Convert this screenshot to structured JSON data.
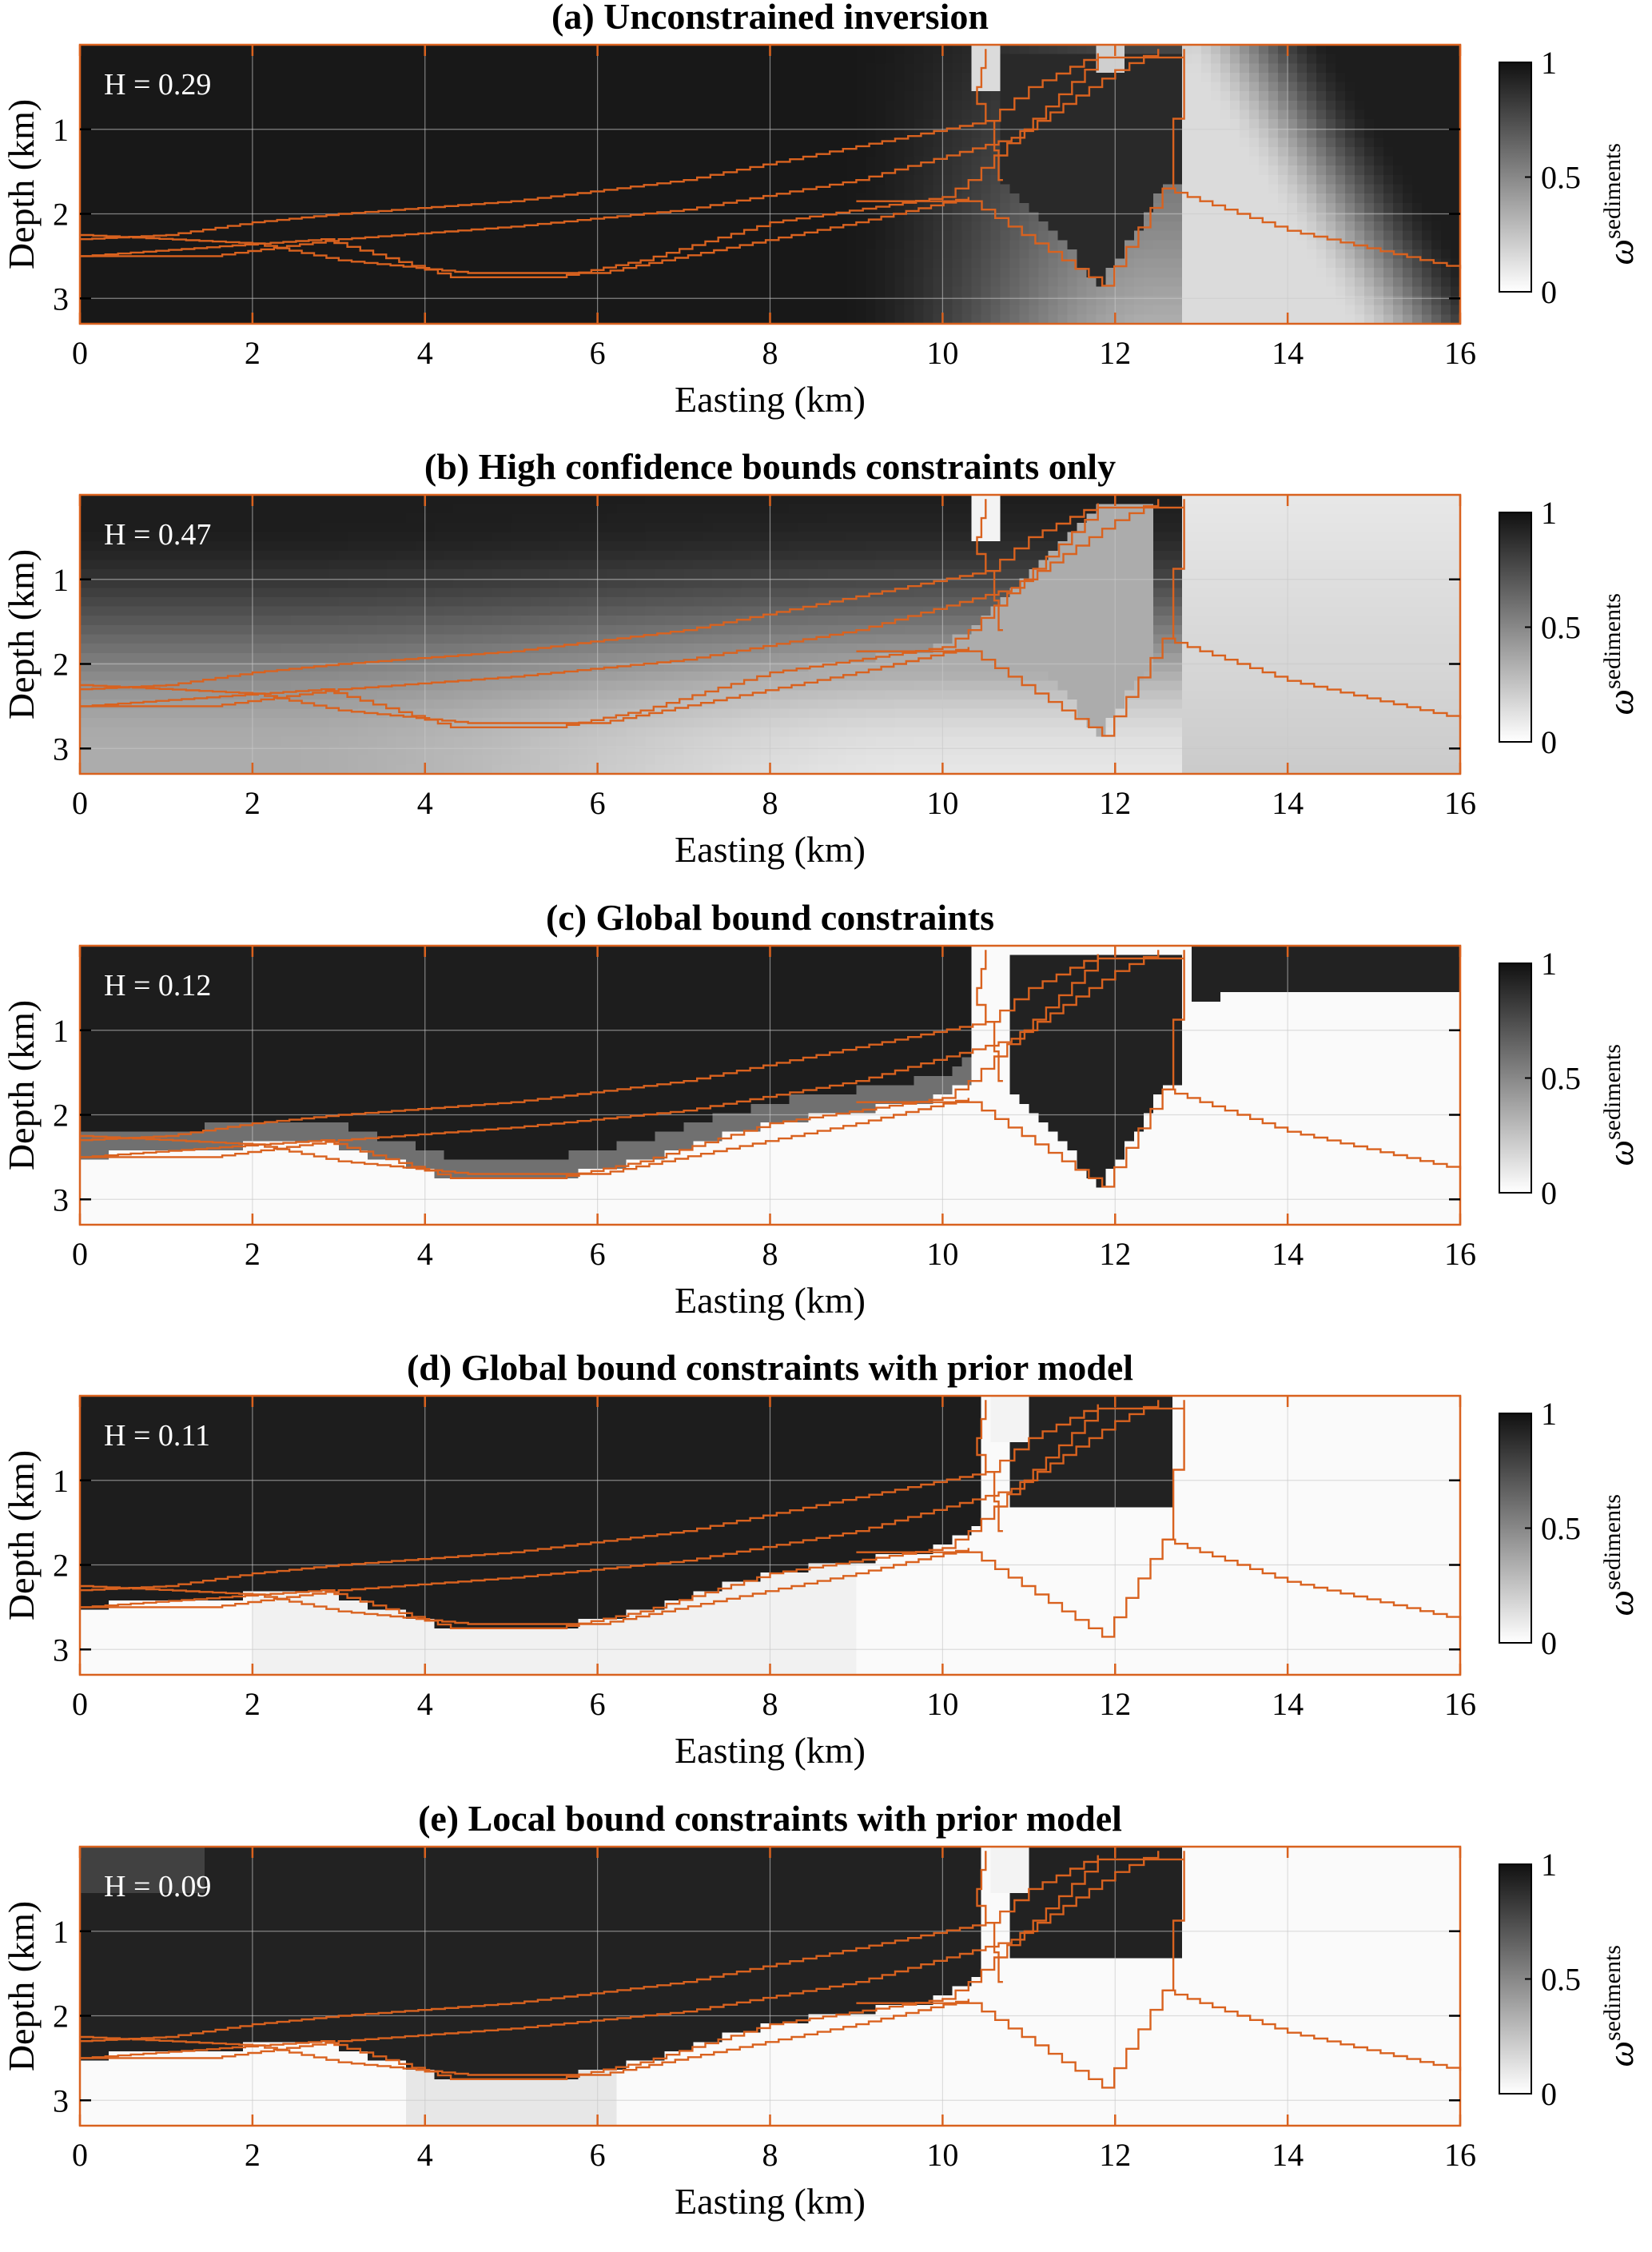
{
  "figure": {
    "x_axis_label": "Easting (km)",
    "y_axis_label": "Depth (km)",
    "colorbar_label_base": "ω",
    "colorbar_label_sup": "sediments",
    "x_ticks": [
      "0",
      "2",
      "4",
      "6",
      "8",
      "10",
      "12",
      "14",
      "16"
    ],
    "y_ticks": [
      "1",
      "2",
      "3"
    ],
    "colorbar_ticks": [
      "1",
      "0.5",
      "0"
    ],
    "colors": {
      "background": "#ffffff",
      "outline": "#d9621f",
      "frame": "#000000",
      "grid": "#c8c8c8"
    }
  },
  "chart_data": [
    {
      "type": "heatmap",
      "title": "(a) Unconstrained inversion",
      "annotation": "H = 0.29",
      "xlabel": "Easting (km)",
      "ylabel": "Depth (km)",
      "xlim": [
        0,
        16
      ],
      "ylim": [
        3.3,
        0
      ],
      "zlim": [
        0,
        1
      ],
      "colormap": "grayscale (1 = black, 0 = white)",
      "grid": true
    },
    {
      "type": "heatmap",
      "title": "(b) High confidence bounds constraints only",
      "annotation": "H = 0.47",
      "xlabel": "Easting (km)",
      "ylabel": "Depth (km)",
      "xlim": [
        0,
        16
      ],
      "ylim": [
        3.3,
        0
      ],
      "zlim": [
        0,
        1
      ],
      "colormap": "grayscale (1 = black, 0 = white)",
      "grid": true
    },
    {
      "type": "heatmap",
      "title": "(c) Global bound constraints",
      "annotation": "H = 0.12",
      "xlabel": "Easting (km)",
      "ylabel": "Depth (km)",
      "xlim": [
        0,
        16
      ],
      "ylim": [
        3.3,
        0
      ],
      "zlim": [
        0,
        1
      ],
      "colormap": "grayscale (1 = black, 0 = white)",
      "grid": true
    },
    {
      "type": "heatmap",
      "title": "(d) Global bound constraints with prior model",
      "annotation": "H = 0.11",
      "xlabel": "Easting (km)",
      "ylabel": "Depth (km)",
      "xlim": [
        0,
        16
      ],
      "ylim": [
        3.3,
        0
      ],
      "zlim": [
        0,
        1
      ],
      "colormap": "grayscale (1 = black, 0 = white)",
      "grid": true
    },
    {
      "type": "heatmap",
      "title": "(e) Local bound constraints with prior model",
      "annotation": "H = 0.09",
      "xlabel": "Easting (km)",
      "ylabel": "Depth (km)",
      "xlim": [
        0,
        16
      ],
      "ylim": [
        3.3,
        0
      ],
      "zlim": [
        0,
        1
      ],
      "colormap": "grayscale (1 = black, 0 = white)",
      "grid": true
    }
  ]
}
